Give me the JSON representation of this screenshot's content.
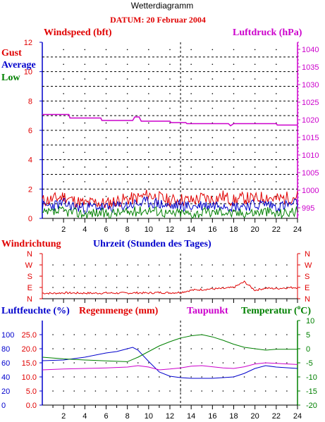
{
  "page": {
    "title": "Wetterdiagramm",
    "date": "DATUM: 20 Februar 2004"
  },
  "chart_data": [
    {
      "type": "line",
      "name": "wind",
      "title_left": "Windspeed (bft)",
      "title_right": "Luftdruck (hPa)",
      "legend": [
        "Gust",
        "Average",
        "Low"
      ],
      "colors": {
        "gust": "#e00000",
        "average": "#0000cc",
        "low": "#008000",
        "pressure": "#cc00cc"
      },
      "y_left_ticks": [
        "0",
        "2",
        "4",
        "6",
        "8",
        "10",
        "12"
      ],
      "y_left_range": [
        0,
        12
      ],
      "y_right_ticks": [
        "995",
        "1000",
        "1005",
        "1010",
        "1015",
        "1020",
        "1025",
        "1030",
        "1035",
        "1040"
      ],
      "y_right_range": [
        992,
        1042
      ],
      "x_range": [
        0,
        24
      ],
      "series": [
        {
          "name": "Gust",
          "x": [
            0,
            1,
            2,
            3,
            4,
            5,
            6,
            7,
            8,
            9,
            10,
            11,
            12,
            13,
            14,
            15,
            16,
            17,
            18,
            19,
            20,
            21,
            22,
            23,
            24
          ],
          "values": [
            1.2,
            1.3,
            1.5,
            1.2,
            1.0,
            1.1,
            1.0,
            1.2,
            1.3,
            1.4,
            1.6,
            1.4,
            1.2,
            1.3,
            1.2,
            1.4,
            1.3,
            1.5,
            1.2,
            1.4,
            1.3,
            1.5,
            1.3,
            1.4,
            1.5
          ]
        },
        {
          "name": "Average",
          "x": [
            0,
            1,
            2,
            3,
            4,
            5,
            6,
            7,
            8,
            9,
            10,
            11,
            12,
            13,
            14,
            15,
            16,
            17,
            18,
            19,
            20,
            21,
            22,
            23,
            24
          ],
          "values": [
            0.8,
            0.9,
            1.0,
            0.8,
            0.7,
            0.8,
            0.7,
            0.8,
            0.9,
            1.0,
            1.1,
            1.0,
            0.8,
            0.9,
            0.8,
            0.9,
            0.9,
            1.0,
            0.8,
            0.9,
            0.9,
            1.0,
            0.8,
            0.9,
            1.0
          ]
        },
        {
          "name": "Low",
          "x": [
            0,
            1,
            2,
            3,
            4,
            5,
            6,
            7,
            8,
            9,
            10,
            11,
            12,
            13,
            14,
            15,
            16,
            17,
            18,
            19,
            20,
            21,
            22,
            23,
            24
          ],
          "values": [
            0.3,
            0.4,
            0.5,
            0.4,
            0.3,
            0.4,
            0.3,
            0.4,
            0.4,
            0.5,
            0.6,
            0.5,
            0.3,
            0.4,
            0.3,
            0.4,
            0.4,
            0.5,
            0.3,
            0.4,
            0.4,
            0.5,
            0.3,
            0.4,
            0.5
          ]
        },
        {
          "name": "Luftdruck",
          "x": [
            0,
            2.5,
            2.6,
            5.5,
            5.6,
            8.5,
            8.7,
            9.1,
            9.3,
            12,
            12.1,
            13.5,
            13.6,
            17.5,
            17.7,
            18,
            18.2,
            22,
            22.1,
            24
          ],
          "values": [
            1021.5,
            1021.5,
            1020.5,
            1020.5,
            1019.8,
            1019.8,
            1020.8,
            1020.8,
            1019.6,
            1019.6,
            1019.2,
            1019.2,
            1018.9,
            1018.9,
            1018.3,
            1018.9,
            1018.9,
            1018.9,
            1018.5,
            1018.5
          ]
        }
      ]
    },
    {
      "type": "line",
      "name": "direction",
      "title_left": "Windrichtung",
      "title_center": "Uhrzeit (Stunden des Tages)",
      "y_ticks": [
        "N",
        "W",
        "S",
        "E",
        "N"
      ],
      "color": "#e00000",
      "x_range": [
        0,
        24
      ],
      "series": [
        {
          "name": "Windrichtung",
          "x": [
            0,
            1,
            2,
            3,
            4,
            5,
            6,
            7,
            8,
            9,
            10,
            11,
            12,
            13,
            14,
            15,
            16,
            17,
            18,
            18.5,
            19,
            20,
            21,
            22,
            23,
            24
          ],
          "values": [
            80,
            78,
            82,
            80,
            80,
            79,
            81,
            80,
            80,
            82,
            80,
            84,
            82,
            85,
            100,
            105,
            110,
            112,
            120,
            160,
            100,
            115,
            112,
            118,
            120,
            122
          ]
        }
      ]
    },
    {
      "type": "line",
      "name": "humidity",
      "title_left": "Luftfeuchte (%)",
      "title_mid": "Regenmenge (mm)",
      "title_taupunkt": "Taupunkt",
      "title_right": "Temperatur (",
      "title_right_unit": "C)",
      "title_degree": "o",
      "y_humidity_ticks": [
        "0",
        "20",
        "40",
        "60",
        "80",
        "100"
      ],
      "y_rain_ticks": [
        "0.0",
        "5.0",
        "10.0",
        "15.0",
        "20.0",
        "25.0"
      ],
      "y_temp_ticks": [
        "-20",
        "-15",
        "-10",
        "-5",
        "0",
        "5",
        "10"
      ],
      "x_ticks": [
        "2",
        "4",
        "6",
        "8",
        "10",
        "12",
        "14",
        "16",
        "18",
        "20",
        "22",
        "24"
      ],
      "x_range": [
        0,
        24
      ],
      "series": [
        {
          "name": "Luftfeuchte",
          "color": "#0000cc",
          "x": [
            0,
            2,
            4,
            6,
            7,
            8,
            8.5,
            9,
            10,
            11,
            12,
            13,
            14,
            16,
            18,
            19,
            20,
            21,
            22,
            24
          ],
          "values": [
            63,
            64,
            68,
            74,
            76,
            80,
            82,
            78,
            62,
            47,
            41,
            39,
            38,
            38,
            40,
            45,
            52,
            56,
            54,
            52
          ]
        },
        {
          "name": "Taupunkt",
          "color": "#cc00cc",
          "x": [
            0,
            2,
            4,
            6,
            8,
            9,
            10,
            11,
            12,
            13,
            14,
            15,
            16,
            17,
            18,
            19,
            20,
            21,
            22,
            23,
            24
          ],
          "values": [
            -7.5,
            -7.2,
            -7.0,
            -6.8,
            -6.5,
            -6.0,
            -6.5,
            -7.5,
            -7.2,
            -6.8,
            -6.2,
            -6.0,
            -6.4,
            -6.8,
            -7.0,
            -6.4,
            -5.4,
            -5.0,
            -5.2,
            -5.4,
            -5.6
          ]
        },
        {
          "name": "Temperatur",
          "color": "#008000",
          "x": [
            0,
            2,
            4,
            6,
            8,
            9,
            10,
            11,
            12,
            13,
            14,
            15,
            16,
            17,
            18,
            19,
            20,
            21,
            22,
            23,
            24
          ],
          "values": [
            -3.0,
            -3.6,
            -4.0,
            -4.3,
            -4.6,
            -3.0,
            -1.0,
            1.0,
            2.5,
            3.8,
            4.6,
            5.0,
            4.2,
            3.0,
            1.6,
            0.5,
            0.0,
            -0.5,
            -0.2,
            -0.2,
            -0.2
          ]
        }
      ]
    }
  ]
}
